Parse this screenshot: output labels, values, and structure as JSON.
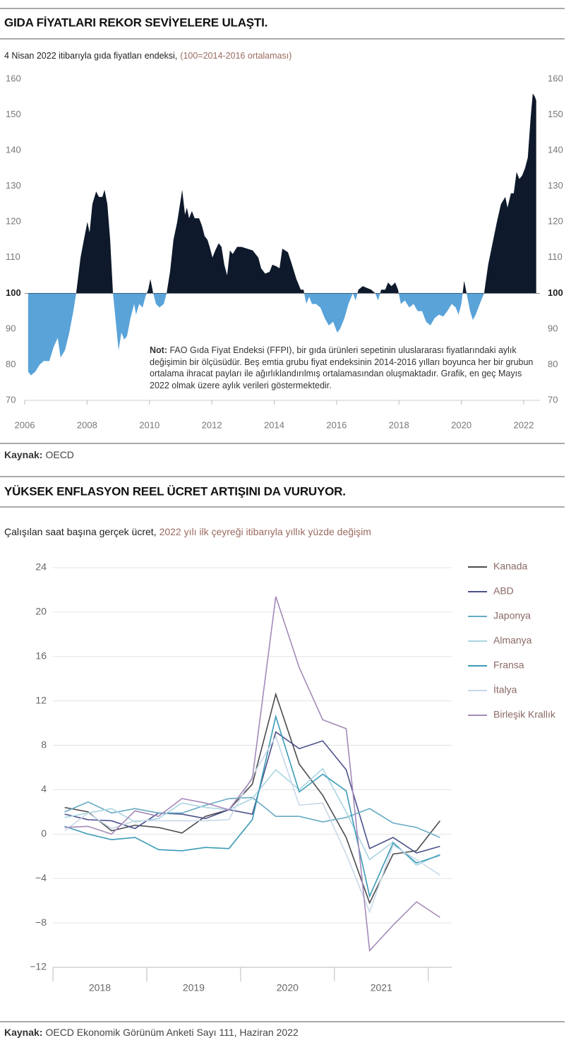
{
  "chart_data": [
    {
      "type": "area",
      "heading": "GIDA FİYATLARI REKOR SEVİYELERE ULAŞTI.",
      "subtitle": "4 Nisan 2022 itibarıyla gıda fiyatları endeksi,",
      "subtitle_note": "(100=2014-2016 ortalaması)",
      "x": [
        2006.11,
        2006.2,
        2006.34,
        2006.48,
        2006.61,
        2006.79,
        2006.93,
        2007.06,
        2007.15,
        2007.29,
        2007.43,
        2007.56,
        2007.65,
        2007.79,
        2007.92,
        2008.01,
        2008.08,
        2008.17,
        2008.29,
        2008.38,
        2008.49,
        2008.56,
        2008.65,
        2008.74,
        2008.83,
        2008.92,
        2009.01,
        2009.1,
        2009.19,
        2009.28,
        2009.39,
        2009.51,
        2009.57,
        2009.67,
        2009.78,
        2009.87,
        2009.96,
        2010.03,
        2010.12,
        2010.21,
        2010.32,
        2010.46,
        2010.55,
        2010.66,
        2010.77,
        2010.89,
        2011.05,
        2011.14,
        2011.2,
        2011.27,
        2011.36,
        2011.45,
        2011.59,
        2011.68,
        2011.77,
        2011.86,
        2011.93,
        2012.02,
        2012.11,
        2012.22,
        2012.31,
        2012.4,
        2012.49,
        2012.58,
        2012.67,
        2012.81,
        2012.95,
        2013.13,
        2013.31,
        2013.49,
        2013.58,
        2013.71,
        2013.85,
        2013.94,
        2014.08,
        2014.17,
        2014.26,
        2014.44,
        2014.57,
        2014.71,
        2014.85,
        2014.94,
        2015.03,
        2015.12,
        2015.21,
        2015.34,
        2015.48,
        2015.62,
        2015.75,
        2015.89,
        2016.02,
        2016.11,
        2016.25,
        2016.38,
        2016.52,
        2016.61,
        2016.7,
        2016.84,
        2016.97,
        2017.11,
        2017.24,
        2017.33,
        2017.43,
        2017.56,
        2017.65,
        2017.76,
        2017.88,
        2017.97,
        2018.06,
        2018.19,
        2018.33,
        2018.47,
        2018.6,
        2018.74,
        2018.87,
        2019.01,
        2019.14,
        2019.28,
        2019.42,
        2019.55,
        2019.69,
        2019.82,
        2019.91,
        2020.0,
        2020.09,
        2020.19,
        2020.28,
        2020.37,
        2020.46,
        2020.59,
        2020.73,
        2020.86,
        2021.0,
        2021.14,
        2021.27,
        2021.41,
        2021.48,
        2021.59,
        2021.68,
        2021.77,
        2021.86,
        2021.95,
        2022.04,
        2022.13,
        2022.22,
        2022.29,
        2022.36,
        2022.4
      ],
      "values": [
        78,
        77,
        78,
        80,
        81,
        81,
        85,
        87.5,
        82,
        84,
        89,
        95,
        100,
        110,
        116,
        120,
        117,
        125,
        128.5,
        127,
        127,
        129,
        125,
        115,
        100,
        92,
        84,
        89,
        87,
        88,
        93,
        97,
        94,
        97,
        96,
        99,
        101,
        104,
        100,
        97,
        96,
        97,
        100,
        106,
        115,
        120,
        129,
        122,
        124,
        121,
        123,
        121,
        121,
        119,
        116,
        115,
        113,
        110,
        112,
        114,
        113,
        108,
        105,
        112,
        111,
        113,
        113,
        112.5,
        112,
        110,
        107,
        105.5,
        106,
        108,
        107.5,
        107,
        112.5,
        111.5,
        108,
        104,
        101,
        101,
        97,
        99,
        97,
        97,
        96,
        93,
        91,
        92,
        89,
        90,
        93,
        97,
        100,
        98,
        101,
        102,
        101.5,
        101,
        100,
        98,
        101,
        101,
        103,
        102,
        103,
        101,
        97,
        98,
        96,
        97,
        95,
        95,
        92,
        91,
        93,
        94,
        93.5,
        95,
        97,
        96,
        94,
        97,
        103.5,
        99,
        95,
        92.5,
        94,
        97,
        100,
        108,
        114,
        120,
        125,
        127,
        124,
        128,
        128,
        134,
        132,
        133,
        135,
        138,
        149,
        156,
        155,
        154
      ],
      "baseline": 100,
      "color_above": "#0e1a2b",
      "color_below": "#5aa3d9",
      "xlim": [
        2006,
        2022.52
      ],
      "xticks": [
        2006,
        2008,
        2010,
        2012,
        2014,
        2016,
        2018,
        2020,
        2022
      ],
      "ylim": [
        70,
        160
      ],
      "yticks": [
        70,
        80,
        90,
        100,
        110,
        120,
        130,
        140,
        150,
        160
      ],
      "y2lim": [
        70,
        160
      ],
      "y2ticks": [
        70,
        80,
        90,
        100,
        110,
        120,
        130,
        140,
        150,
        160
      ],
      "note_label": "Not:",
      "note": "FAO Gıda Fiyat Endeksi (FFPI), bir gıda ürünleri sepetinin uluslararası fiyatlarındaki aylık değişimin bir ölçüsüdür. Beş emtia grubu fiyat endeksinin 2014-2016 yılları boyunca her bir grubun ortalama ihracat payları ile ağırlıklandırılmış ortalamasından oluşmaktadır. Grafik, en geç Mayıs 2022 olmak üzere aylık verileri göstermektedir.",
      "source_label": "Kaynak:",
      "source": "OECD"
    },
    {
      "type": "line",
      "heading": "YÜKSEK ENFLASYON REEL ÜCRET ARTIŞINI DA VURUYOR.",
      "subtitle": "Çalışılan saat başına gerçek ücret,",
      "subtitle_note": "2022 yılı ilk çeyreği itibarıyla yıllık yüzde değişim",
      "x": [
        2018.125,
        2018.375,
        2018.625,
        2018.875,
        2019.125,
        2019.375,
        2019.625,
        2019.875,
        2020.125,
        2020.375,
        2020.625,
        2020.875,
        2021.125,
        2021.375,
        2021.625,
        2021.875,
        2022.125
      ],
      "series": [
        {
          "name": "Kanada",
          "color": "#4b4b4f",
          "values": [
            2.4,
            2.0,
            0.3,
            0.8,
            0.6,
            0.1,
            1.6,
            2.2,
            4.5,
            12.6,
            6.3,
            3.5,
            -0.3,
            -6.2,
            -1.8,
            -1.5,
            1.2
          ]
        },
        {
          "name": "ABD",
          "color": "#4c5189",
          "values": [
            1.8,
            1.3,
            1.2,
            0.5,
            1.9,
            1.8,
            1.4,
            2.2,
            1.8,
            9.2,
            7.7,
            8.4,
            5.8,
            -1.3,
            -0.3,
            -1.7,
            -1.1
          ]
        },
        {
          "name": "Japonya",
          "color": "#66aac4",
          "values": [
            2.0,
            2.9,
            1.9,
            2.3,
            1.9,
            1.9,
            2.6,
            3.2,
            3.3,
            1.6,
            1.6,
            1.1,
            1.5,
            2.3,
            1.0,
            0.6,
            -0.3
          ]
        },
        {
          "name": "Almanya",
          "color": "#a9d5e2",
          "values": [
            1.5,
            1.9,
            2.3,
            1.1,
            1.4,
            2.8,
            2.4,
            2.2,
            3.2,
            5.8,
            4.0,
            5.9,
            2.0,
            -2.3,
            -0.7,
            -2.8,
            -1.8
          ]
        },
        {
          "name": "Fransa",
          "color": "#3b9bb6",
          "values": [
            0.7,
            0.0,
            -0.5,
            -0.3,
            -1.4,
            -1.5,
            -1.2,
            -1.3,
            1.3,
            10.6,
            3.8,
            5.4,
            3.9,
            -5.6,
            -0.8,
            -2.6,
            -1.9
          ]
        },
        {
          "name": "İtalya",
          "color": "#c8d8e8",
          "values": [
            0.3,
            1.9,
            0.5,
            1.2,
            1.2,
            1.2,
            1.2,
            1.3,
            5.2,
            8.8,
            2.6,
            2.8,
            -1.8,
            -7.0,
            -1.0,
            -2.3,
            -3.7
          ]
        },
        {
          "name": "Birleşik Krallık",
          "color": "#a48ab9",
          "values": [
            0.6,
            0.7,
            0.0,
            2.1,
            1.6,
            3.2,
            2.8,
            2.2,
            5.0,
            21.4,
            15.0,
            10.3,
            9.5,
            -10.5,
            -8.2,
            -6.1,
            -7.5
          ]
        }
      ],
      "xlim": [
        2018,
        2022.25
      ],
      "xticks": [
        {
          "value": 2018.5,
          "label": "2018"
        },
        {
          "value": 2019.5,
          "label": "2019"
        },
        {
          "value": 2020.5,
          "label": "2020"
        },
        {
          "value": 2021.5,
          "label": "2021"
        }
      ],
      "xbounds": [
        2018,
        2019,
        2020,
        2021,
        2022
      ],
      "ylim": [
        -12,
        24
      ],
      "yticks": [
        {
          "value": -12,
          "label": "−12"
        },
        {
          "value": -8,
          "label": "−8"
        },
        {
          "value": -4,
          "label": "−4"
        },
        0,
        4,
        8,
        12,
        16,
        20,
        24
      ],
      "grid": true,
      "legend": "right",
      "source_label": "Kaynak:",
      "source": "OECD Ekonomik Görünüm Anketi Sayı 111, Haziran 2022"
    }
  ]
}
